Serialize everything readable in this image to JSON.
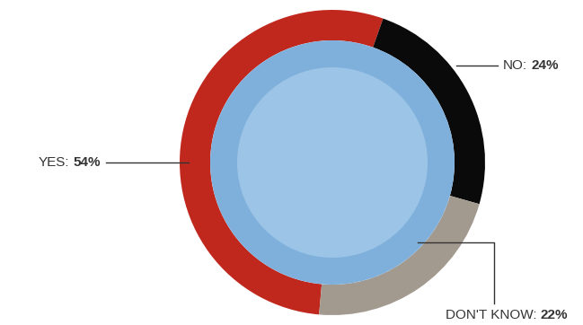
{
  "chart_data": {
    "type": "pie",
    "categories": [
      "YES:",
      "NO:",
      "DON'T KNOW:"
    ],
    "values": [
      54,
      24,
      22
    ],
    "value_labels": [
      "54%",
      "24%",
      "22%"
    ],
    "colors": [
      "#c0281e",
      "#0a0a0a",
      "#a39a8f"
    ],
    "data_labels": true
  }
}
